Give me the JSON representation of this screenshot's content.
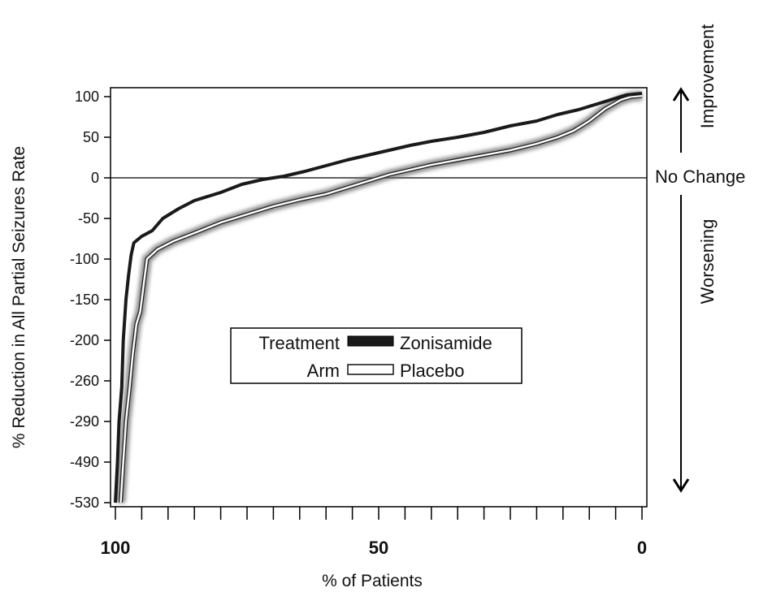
{
  "chart_data": {
    "type": "line",
    "xlabel": "% of Patients",
    "ylabel": "% Reduction in All Partial Seizures Rate",
    "x_reversed": true,
    "xlim": [
      100,
      0
    ],
    "x_ticks": [
      100,
      50,
      0
    ],
    "y_tick_labels": [
      "100",
      "50",
      "0",
      "-50",
      "-100",
      "-150",
      "-200",
      "-260",
      "-290",
      "-490",
      "-530"
    ],
    "reference_line": {
      "y": 0,
      "label": "No Change"
    },
    "annotations": {
      "up": "Improvement",
      "down": "Worsening"
    },
    "legend": {
      "title_line1": "Treatment",
      "title_line2": "Arm",
      "placement": "center"
    },
    "series": [
      {
        "name": "Zonisamide",
        "color": "#1a1a1a",
        "points": [
          [
            100,
            -530
          ],
          [
            99.6,
            -490
          ],
          [
            99.3,
            -290
          ],
          [
            98.8,
            -265
          ],
          [
            98.5,
            -200
          ],
          [
            98,
            -150
          ],
          [
            97.5,
            -120
          ],
          [
            97,
            -95
          ],
          [
            96.5,
            -80
          ],
          [
            95,
            -72
          ],
          [
            93,
            -65
          ],
          [
            91,
            -50
          ],
          [
            88,
            -38
          ],
          [
            85,
            -28
          ],
          [
            80,
            -18
          ],
          [
            76,
            -8
          ],
          [
            72,
            -2
          ],
          [
            68,
            2
          ],
          [
            64,
            8
          ],
          [
            60,
            15
          ],
          [
            56,
            22
          ],
          [
            52,
            28
          ],
          [
            48,
            34
          ],
          [
            44,
            40
          ],
          [
            40,
            45
          ],
          [
            35,
            50
          ],
          [
            30,
            56
          ],
          [
            25,
            64
          ],
          [
            20,
            70
          ],
          [
            16,
            78
          ],
          [
            12,
            84
          ],
          [
            8,
            92
          ],
          [
            5,
            98
          ],
          [
            3,
            102
          ],
          [
            0,
            104
          ]
        ]
      },
      {
        "name": "Placebo",
        "color": "#ffffff",
        "points": [
          [
            99,
            -530
          ],
          [
            98.5,
            -490
          ],
          [
            98,
            -290
          ],
          [
            97.3,
            -265
          ],
          [
            96.7,
            -220
          ],
          [
            96,
            -180
          ],
          [
            95.3,
            -165
          ],
          [
            94.6,
            -130
          ],
          [
            94,
            -100
          ],
          [
            92,
            -88
          ],
          [
            89,
            -78
          ],
          [
            85,
            -68
          ],
          [
            80,
            -55
          ],
          [
            75,
            -45
          ],
          [
            70,
            -35
          ],
          [
            65,
            -27
          ],
          [
            60,
            -20
          ],
          [
            56,
            -12
          ],
          [
            52,
            -4
          ],
          [
            48,
            4
          ],
          [
            44,
            10
          ],
          [
            40,
            16
          ],
          [
            35,
            22
          ],
          [
            30,
            28
          ],
          [
            25,
            34
          ],
          [
            20,
            42
          ],
          [
            16,
            50
          ],
          [
            13,
            58
          ],
          [
            10,
            70
          ],
          [
            7,
            85
          ],
          [
            4,
            96
          ],
          [
            2,
            100
          ],
          [
            0,
            101
          ]
        ]
      }
    ]
  }
}
